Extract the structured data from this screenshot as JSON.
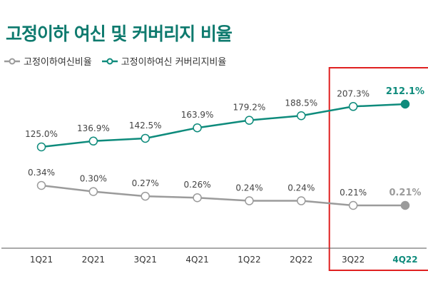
{
  "title": "고정이하 여신 및 커버리지 비율",
  "colors": {
    "title": "#0e7a6e",
    "coverage": "#0e8b7c",
    "npl": "#9b9b9b",
    "highlight_box": "#e02020",
    "axis": "#555555"
  },
  "chart_data": {
    "type": "line",
    "categories": [
      "1Q21",
      "2Q21",
      "3Q21",
      "4Q21",
      "1Q22",
      "2Q22",
      "3Q22",
      "4Q22"
    ],
    "series": [
      {
        "name": "고정이하여신비율",
        "values": [
          0.34,
          0.3,
          0.27,
          0.26,
          0.24,
          0.24,
          0.21,
          0.21
        ],
        "labels": [
          "0.34%",
          "0.30%",
          "0.27%",
          "0.26%",
          "0.24%",
          "0.24%",
          "0.21%",
          "0.21%"
        ],
        "color": "#9b9b9b"
      },
      {
        "name": "고정이하여신 커버리지비율",
        "values": [
          125.0,
          136.9,
          142.5,
          163.9,
          179.2,
          188.5,
          207.3,
          212.1
        ],
        "labels": [
          "125.0%",
          "136.9%",
          "142.5%",
          "163.9%",
          "179.2%",
          "188.5%",
          "207.3%",
          "212.1%"
        ],
        "color": "#0e8b7c"
      }
    ],
    "highlighted_categories": [
      "3Q22",
      "4Q22"
    ],
    "emphasized_category": "4Q22",
    "legend_position": "top-left",
    "grid": false
  }
}
